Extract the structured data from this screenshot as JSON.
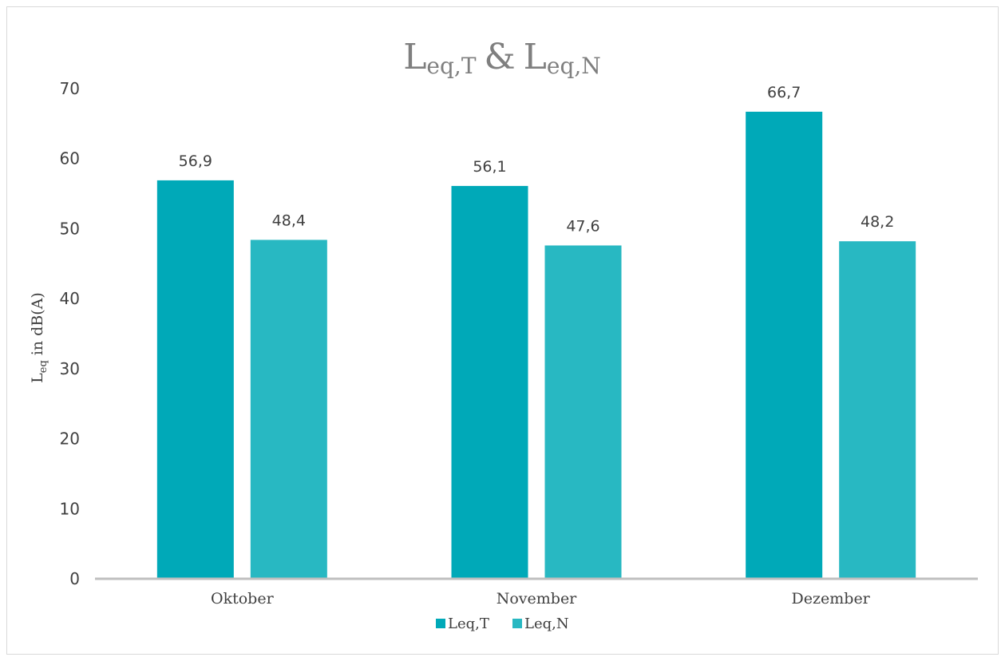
{
  "chart_data": {
    "type": "bar",
    "title": {
      "base1": "L",
      "sub1": "eq,T",
      "amp": "&",
      "base2": "L",
      "sub2": "eq,N"
    },
    "ylabel": {
      "base": "L",
      "sub": "eq",
      "rest": " in dB(A)"
    },
    "xlabel": "",
    "categories": [
      "Oktober",
      "November",
      "Dezember"
    ],
    "series": [
      {
        "name": "Leq,T",
        "values": [
          56.9,
          56.1,
          66.7
        ],
        "labels": [
          "56,9",
          "56,1",
          "66,7"
        ],
        "color": "#00a9b8"
      },
      {
        "name": "Leq,N",
        "values": [
          48.4,
          47.6,
          48.2
        ],
        "labels": [
          "48,4",
          "47,6",
          "48,2"
        ],
        "color": "#28b8c2"
      }
    ],
    "ylim": [
      0,
      70
    ],
    "yticks": [
      0,
      10,
      20,
      30,
      40,
      50,
      60,
      70
    ],
    "grid": false,
    "legend_position": "bottom"
  }
}
